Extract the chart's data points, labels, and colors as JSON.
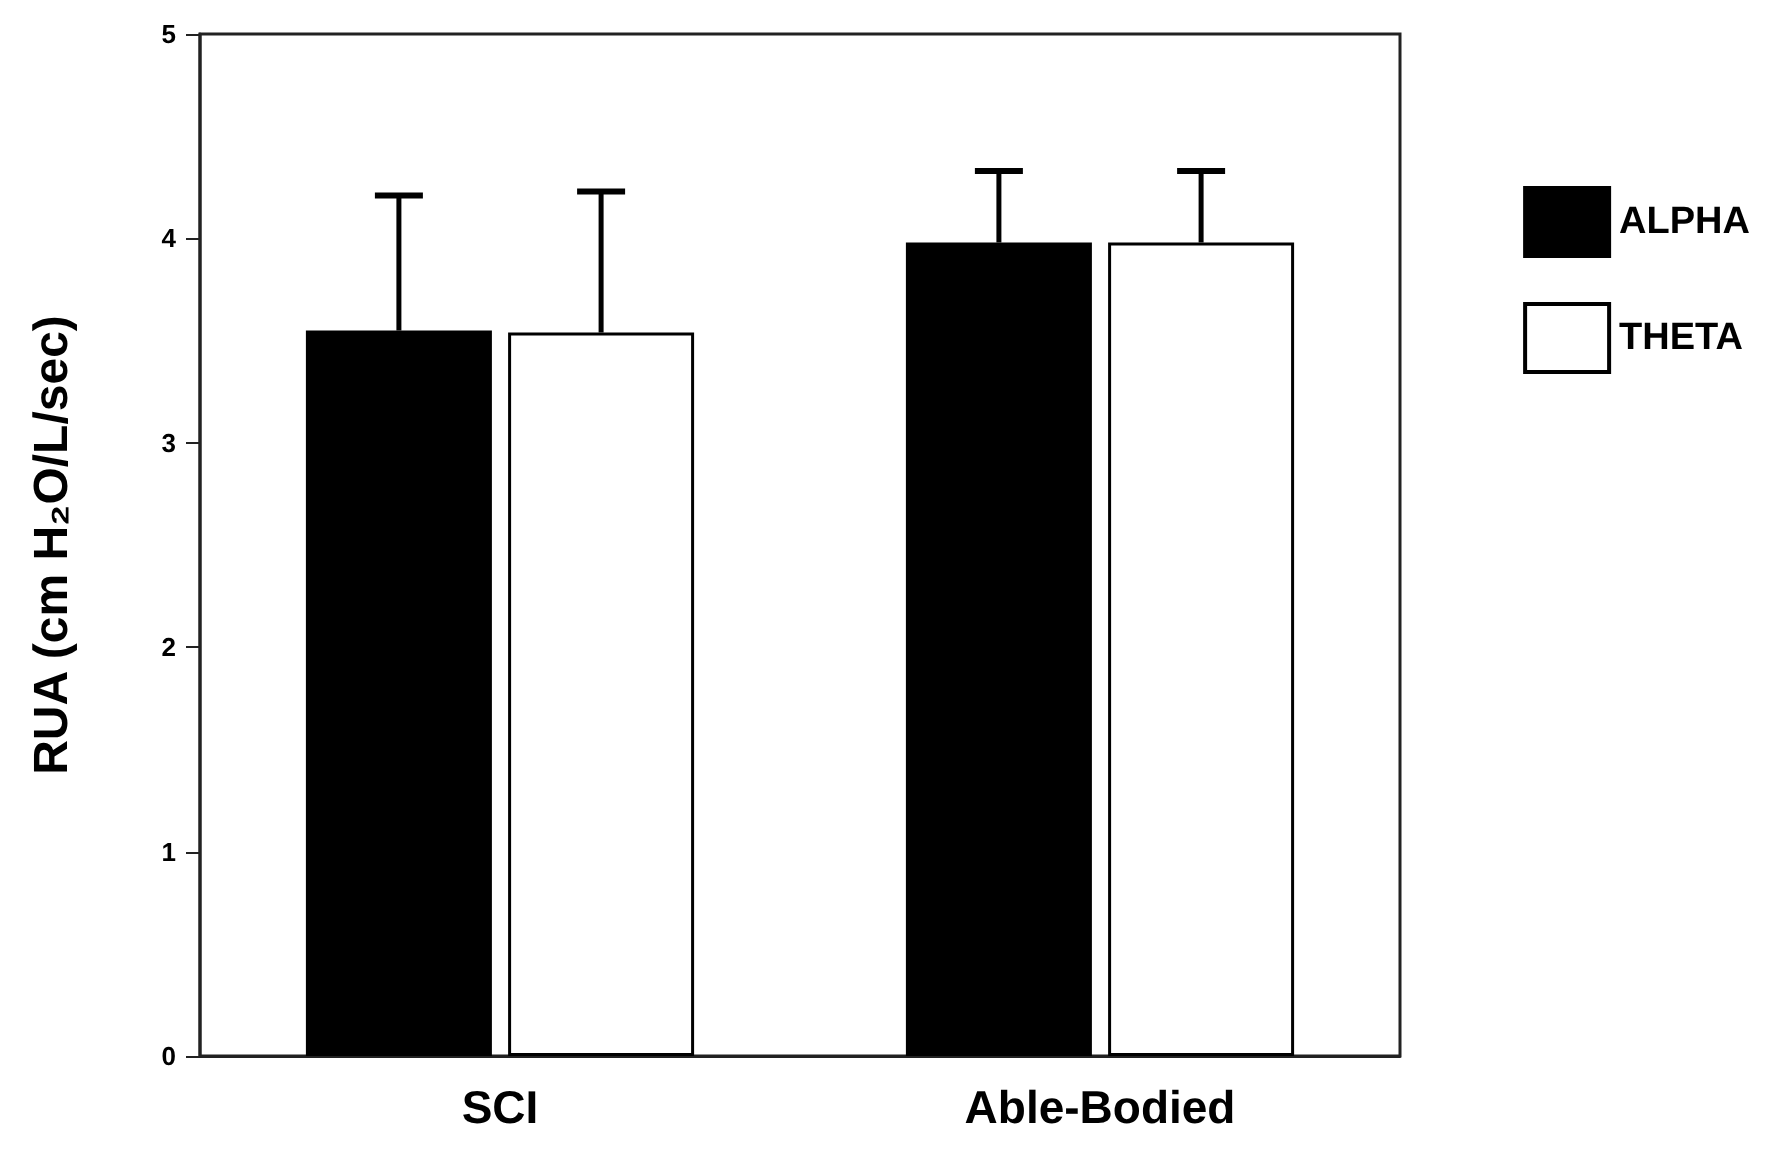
{
  "chart_data": {
    "type": "bar",
    "ylabel": "RUA (cm H₂O/L/sec)",
    "categories": [
      "SCI",
      "Able-Bodied"
    ],
    "series": [
      {
        "name": "ALPHA",
        "color": "#000000",
        "values": [
          3.55,
          3.98
        ],
        "errors": [
          [
            3.55,
            4.21
          ],
          [
            3.98,
            4.33
          ]
        ]
      },
      {
        "name": "THETA",
        "color": "#ffffff",
        "values": [
          3.54,
          3.98
        ],
        "errors": [
          [
            3.54,
            4.23
          ],
          [
            3.98,
            4.33
          ]
        ]
      }
    ],
    "ylim": [
      0,
      5
    ],
    "yticks": [
      0,
      1,
      2,
      3,
      4,
      5
    ],
    "grid": false,
    "legend": "right"
  }
}
